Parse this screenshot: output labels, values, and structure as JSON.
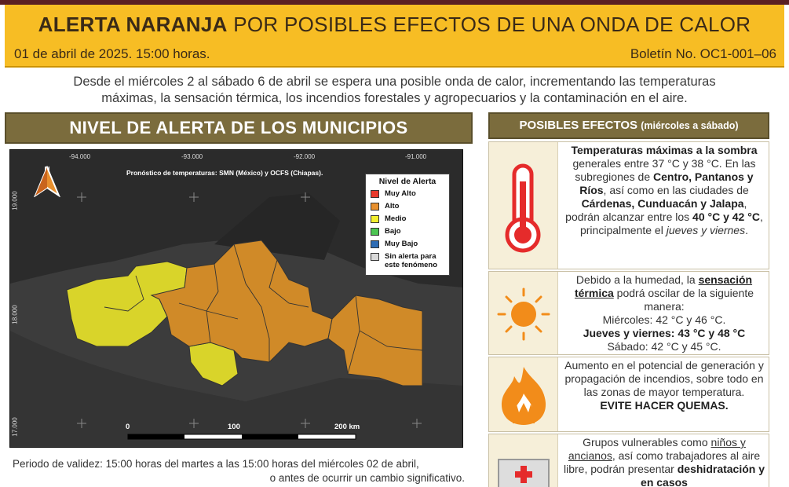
{
  "header": {
    "title_bold": "ALERTA NARANJA",
    "title_rest": "POR POSIBLES EFECTOS DE UNA ONDA DE CALOR",
    "date": "01 de abril de 2025. 15:00 horas.",
    "bulletin": "Boletín No. OC1-001–06"
  },
  "intro": {
    "line1": "Desde el miércoles 2 al sábado 6 de abril se espera una posible onda de calor, incrementando las temperaturas",
    "line2": "máximas, la sensación térmica, los incendios forestales y agropecuarios y la contaminación en el aire."
  },
  "left_panel": {
    "title": "NIVEL DE ALERTA DE LOS MUNICIPIOS",
    "map_credit": "Pronóstico de temperaturas: SMN (México) y OCFS (Chiapas).",
    "north_label": "N",
    "lon_labels": [
      "-94.000",
      "-93.000",
      "-92.000",
      "-91.000"
    ],
    "lat_labels": [
      "19.000",
      "18.000",
      "17.000"
    ],
    "scale_labels": [
      "0",
      "100",
      "200 km"
    ],
    "legend": {
      "title": "Nivel de Alerta",
      "items": [
        {
          "label": "Muy Alto",
          "color": "#e8392b"
        },
        {
          "label": "Alto",
          "color": "#e8902e"
        },
        {
          "label": "Medio",
          "color": "#f2ef2f"
        },
        {
          "label": "Bajo",
          "color": "#4cc552"
        },
        {
          "label": "Muy Bajo",
          "color": "#2f6db5"
        },
        {
          "label": "Sin alerta para este fenómeno",
          "color": "#d9d9d9"
        }
      ]
    },
    "validity_line1": "Periodo de validez: 15:00 horas del martes a las 15:00 horas del miércoles 02 de abril,",
    "validity_line2": "o antes de ocurrir un cambio significativo."
  },
  "right_panel": {
    "title": "POSIBLES EFECTOS",
    "title_suffix": "(miércoles a sábado)",
    "effects": [
      {
        "icon": "thermometer-icon",
        "p1_bold": "Temperaturas máximas a la sombra",
        "p1_rest": " generales entre 37 °C y 38 °C. En las subregiones de ",
        "p2_bold": "Centro, Pantanos y Ríos",
        "p2_rest": ", así como en las ciudades de ",
        "p3_bold": "Cárdenas, Cunduacán y Jalapa",
        "p3_rest": ", podrán alcanzar entre los ",
        "p4_bold": "40 °C y 42 °C",
        "p4_rest": ", principalmente el ",
        "p5_italic": "jueves y viernes",
        "p5_rest": "."
      },
      {
        "icon": "sun-icon",
        "l1": "Debido a la humedad, la ",
        "l1_bold": "sensación térmica",
        "l2": " podrá oscilar de la siguiente manera:",
        "wed": "Miércoles: 42 °C y 46 °C.",
        "thufri": "Jueves y viernes: 43 °C y 48 °C",
        "sat": "Sábado: 42 °C y 45 °C."
      },
      {
        "icon": "fire-icon",
        "text": "Aumento en el potencial de generación y propagación de incendios, sobre todo en las zonas de mayor temperatura.",
        "bold": "EVITE HACER QUEMAS."
      },
      {
        "icon": "first-aid-icon",
        "t1": "Grupos vulnerables como ",
        "t1_u": "niños y ancianos",
        "t2": ", así como trabajadores al aire libre, podrán presentar ",
        "t2_bold": "deshidratación y en casos"
      }
    ]
  }
}
